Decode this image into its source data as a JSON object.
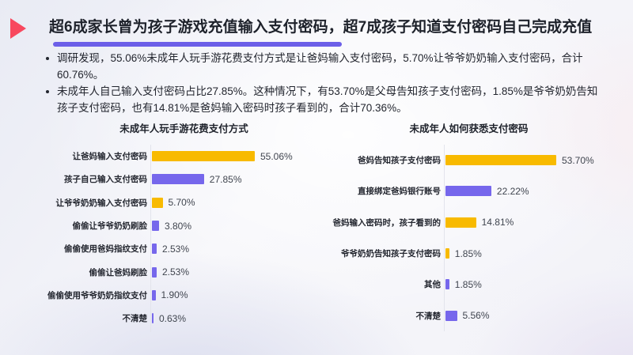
{
  "header": {
    "title": "超6成家长曾为孩子游戏充值输入支付密码，超7成孩子知道支付密码自己完成充值",
    "bullets": [
      "调研发现，55.06%未成年人玩手游花费支付方式是让爸妈输入支付密码，5.70%让爷爷奶奶输入支付密码，合计60.76%。",
      "未成年人自己输入支付密码占比27.85%。这种情况下，有53.70%是父母告知孩子支付密码，1.85%是爷爷奶奶告知孩子支付密码，也有14.81%是爸妈输入密码时孩子看到的，合计70.36%。"
    ]
  },
  "colors": {
    "bar_yellow": "#F8BA00",
    "bar_purple": "#7667EC",
    "accent_purple": "#6C5FE8",
    "triangle_red": "#F8485E",
    "title_text": "#1E222B",
    "axis": "#E3E4EC"
  },
  "chart_data": [
    {
      "type": "bar",
      "orientation": "horizontal",
      "title": "未成年人玩手游花费支付方式",
      "categories": [
        "让爸妈输入支付密码",
        "孩子自己输入支付密码",
        "让爷爷奶奶输入支付密码",
        "偷偷让爷爷奶奶刷脸",
        "偷偷使用爸妈指纹支付",
        "偷偷让爸妈刷脸",
        "偷偷使用爷爷奶奶指纹支付",
        "不清楚"
      ],
      "values": [
        55.06,
        27.85,
        5.7,
        3.8,
        2.53,
        2.53,
        1.9,
        0.63
      ],
      "value_labels": [
        "55.06%",
        "27.85%",
        "5.70%",
        "3.80%",
        "2.53%",
        "2.53%",
        "1.90%",
        "0.63%"
      ],
      "colors": [
        "yellow",
        "purple",
        "yellow",
        "purple",
        "purple",
        "purple",
        "purple",
        "purple"
      ],
      "xlim": [
        0,
        60
      ],
      "grid": false,
      "legend": false
    },
    {
      "type": "bar",
      "orientation": "horizontal",
      "title": "未成年人如何获悉支付密码",
      "categories": [
        "爸妈告知孩子支付密码",
        "直接绑定爸妈银行账号",
        "爸妈输入密码时，孩子看到的",
        "爷爷奶奶告知孩子支付密码",
        "其他",
        "不清楚"
      ],
      "values": [
        53.7,
        22.22,
        14.81,
        1.85,
        1.85,
        5.56
      ],
      "value_labels": [
        "53.70%",
        "22.22%",
        "14.81%",
        "1.85%",
        "1.85%",
        "5.56%"
      ],
      "colors": [
        "yellow",
        "purple",
        "yellow",
        "yellow",
        "purple",
        "purple"
      ],
      "xlim": [
        0,
        60
      ],
      "grid": false,
      "legend": false
    }
  ]
}
